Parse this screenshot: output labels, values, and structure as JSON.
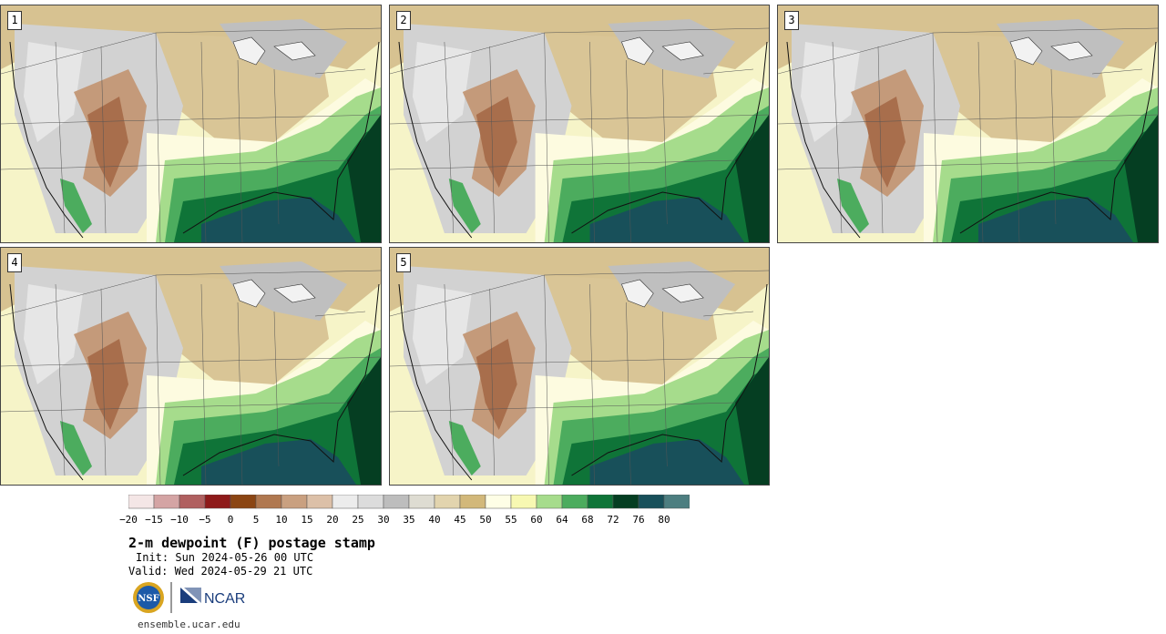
{
  "panels": [
    {
      "label": "1"
    },
    {
      "label": "2"
    },
    {
      "label": "3"
    },
    {
      "label": "4"
    },
    {
      "label": "5"
    }
  ],
  "colorbar": {
    "colors": [
      "#f4e6e6",
      "#d4a4a4",
      "#b06060",
      "#8e1a1a",
      "#8b4513",
      "#b07850",
      "#c9a080",
      "#dcc0a8",
      "#ececec",
      "#dcdcdc",
      "#bdbdbd",
      "#dedcd2",
      "#e2d4ae",
      "#d2b87a",
      "#fefee6",
      "#f7f8b2",
      "#a6dc8c",
      "#4cac5e",
      "#0f7438",
      "#053e22",
      "#18505a",
      "#4d7e80"
    ],
    "tick_labels": [
      "−20",
      "−15",
      "−10",
      "−5",
      "0",
      "5",
      "10",
      "15",
      "20",
      "25",
      "30",
      "35",
      "40",
      "45",
      "50",
      "55",
      "60",
      "64",
      "68",
      "72",
      "76",
      "80"
    ]
  },
  "title": "2-m dewpoint (F) postage stamp",
  "init": "Init: Sun 2024-05-26 00 UTC",
  "valid": "Valid: Wed 2024-05-29 21 UTC",
  "logos": {
    "nsf": "NSF",
    "ncar": "NCAR"
  },
  "site": "ensemble.ucar.edu"
}
